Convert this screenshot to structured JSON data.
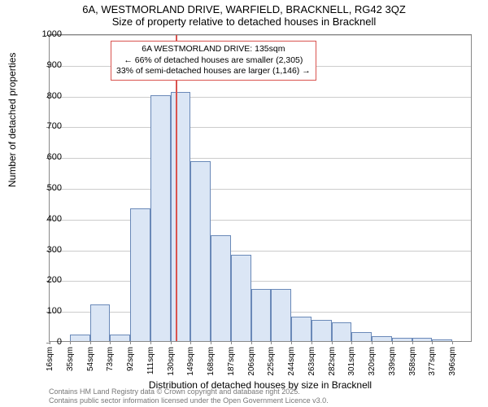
{
  "titles": {
    "line1": "6A, WESTMORLAND DRIVE, WARFIELD, BRACKNELL, RG42 3QZ",
    "line2": "Size of property relative to detached houses in Bracknell"
  },
  "ylabel": "Number of detached properties",
  "xlabel": "Distribution of detached houses by size in Bracknell",
  "footer": {
    "line1": "Contains HM Land Registry data © Crown copyright and database right 2025.",
    "line2": "Contains public sector information licensed under the Open Government Licence v3.0."
  },
  "chart": {
    "type": "histogram",
    "ylim": [
      0,
      1000
    ],
    "ytick_step": 100,
    "yticks": [
      0,
      100,
      200,
      300,
      400,
      500,
      600,
      700,
      800,
      900,
      1000
    ],
    "xticks": [
      "16sqm",
      "35sqm",
      "54sqm",
      "73sqm",
      "92sqm",
      "111sqm",
      "130sqm",
      "149sqm",
      "168sqm",
      "187sqm",
      "206sqm",
      "225sqm",
      "244sqm",
      "263sqm",
      "282sqm",
      "301sqm",
      "320sqm",
      "339sqm",
      "358sqm",
      "377sqm",
      "396sqm"
    ],
    "values": [
      0,
      20,
      120,
      20,
      430,
      800,
      810,
      585,
      345,
      280,
      170,
      170,
      80,
      70,
      60,
      30,
      15,
      10,
      10,
      5,
      0
    ],
    "bar_fill": "#dbe6f5",
    "bar_stroke": "#6a89b8",
    "grid_color": "#cccccc",
    "axis_color": "#888888",
    "background_color": "#ffffff"
  },
  "marker": {
    "value_sqm": 135,
    "color": "#d9534f",
    "label_line1": "6A WESTMORLAND DRIVE: 135sqm",
    "label_line2": "← 66% of detached houses are smaller (2,305)",
    "label_line3": "33% of semi-detached houses are larger (1,146) →",
    "box_border_color": "#d9534f"
  }
}
